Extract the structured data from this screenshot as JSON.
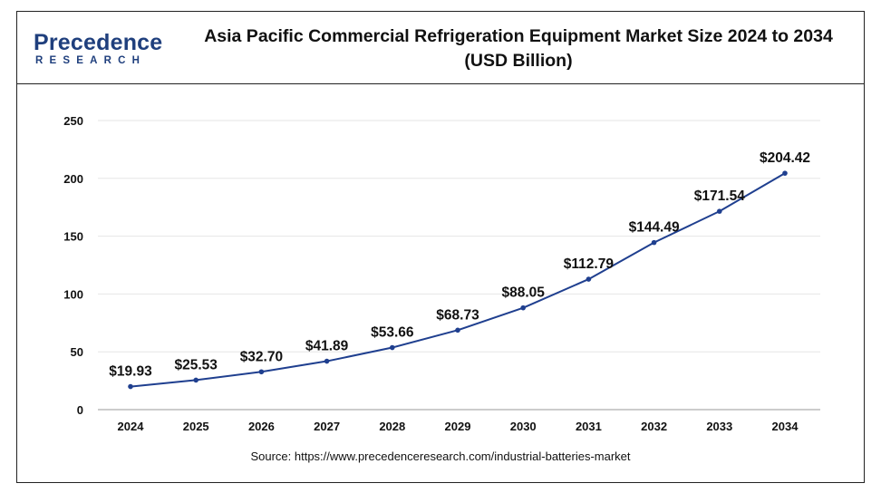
{
  "header": {
    "logo_word": "Precedence",
    "logo_sub": "RESEARCH",
    "title_line1": "Asia Pacific Commercial Refrigeration Equipment Market Size 2024 to 2034",
    "title_line2": "(USD Billion)"
  },
  "source": "Source: https://www.precedenceresearch.com/industrial-batteries-market",
  "chart_data": {
    "type": "line",
    "title": "Asia Pacific Commercial Refrigeration Equipment Market Size 2024 to 2034 (USD Billion)",
    "xlabel": "",
    "ylabel": "",
    "categories": [
      "2024",
      "2025",
      "2026",
      "2027",
      "2028",
      "2029",
      "2030",
      "2031",
      "2032",
      "2033",
      "2034"
    ],
    "series": [
      {
        "values": [
          19.93,
          25.53,
          32.7,
          41.89,
          53.66,
          68.73,
          88.05,
          112.79,
          144.49,
          171.54,
          204.42
        ],
        "labels": [
          "$19.93",
          "$25.53",
          "$32.70",
          "$41.89",
          "$53.66",
          "$68.73",
          "$88.05",
          "$112.79",
          "$144.49",
          "$171.54",
          "$204.42"
        ],
        "color": "#1f3f8f"
      }
    ],
    "ylim": [
      0,
      250
    ],
    "yticks": [
      0,
      50,
      100,
      150,
      200,
      250
    ],
    "grid": true,
    "legend": "none",
    "colors": {
      "line": "#1f3f8f",
      "grid": "#e6e6e6",
      "axis": "#9a9a9a",
      "text": "#111111"
    }
  }
}
